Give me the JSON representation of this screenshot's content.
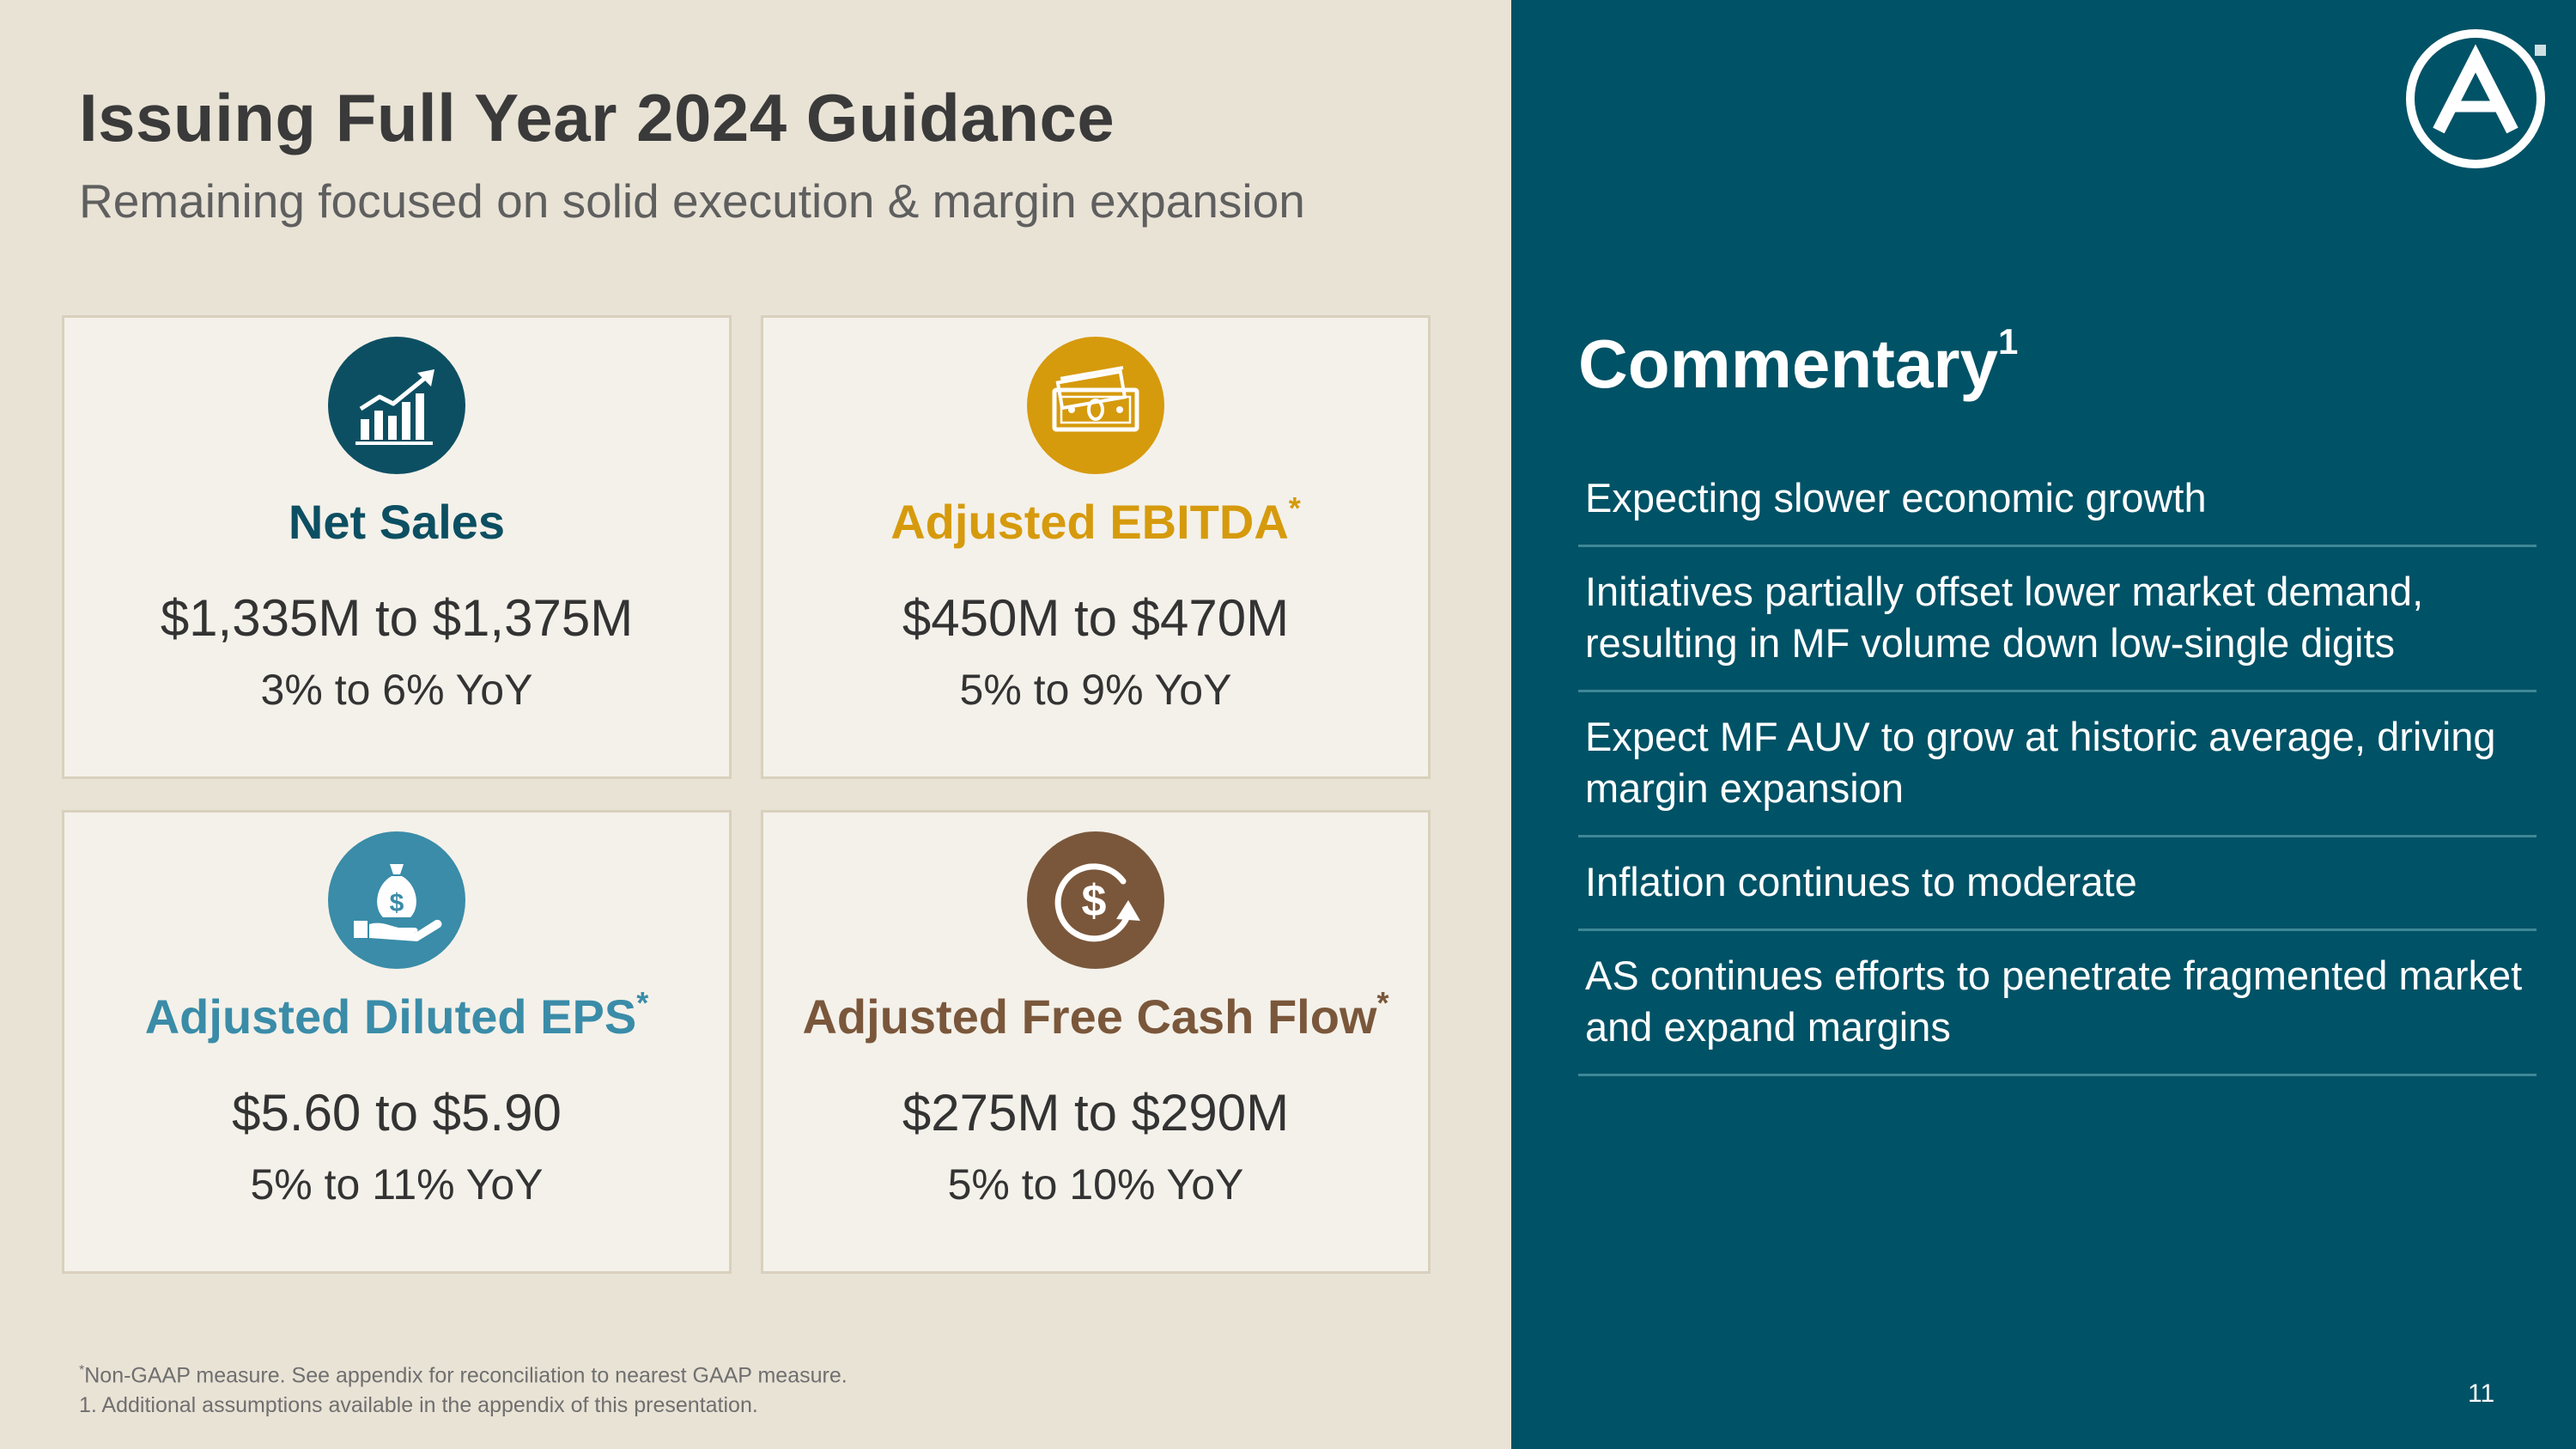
{
  "slide": {
    "title": "Issuing Full Year 2024 Guidance",
    "subtitle": "Remaining focused on solid execution & margin expansion",
    "page_number": "11"
  },
  "cards": [
    {
      "label": "Net Sales",
      "asterisk": "",
      "range": "$1,335M to $1,375M",
      "yoy": "3% to 6% YoY",
      "icon": "growth-chart-icon",
      "color": "#0d4f62"
    },
    {
      "label": "Adjusted EBITDA",
      "asterisk": "*",
      "range": "$450M to $470M",
      "yoy": "5% to 9% YoY",
      "icon": "money-bills-icon",
      "color": "#d69a0d"
    },
    {
      "label": "Adjusted Diluted EPS",
      "asterisk": "*",
      "range": "$5.60 to $5.90",
      "yoy": "5% to 11% YoY",
      "icon": "money-bag-hand-icon",
      "color": "#3a8ca8"
    },
    {
      "label": "Adjusted Free Cash Flow",
      "asterisk": "*",
      "range": "$275M to $290M",
      "yoy": "5% to 10% YoY",
      "icon": "cash-cycle-icon",
      "color": "#7a573b"
    }
  ],
  "commentary": {
    "title": "Commentary",
    "title_note": "1",
    "items": [
      "Expecting slower economic growth",
      "Initiatives partially offset lower market demand, resulting in MF volume down low-single digits",
      "Expect MF AUV to grow at historic average, driving margin expansion",
      "Inflation continues to moderate",
      "AS continues efforts to penetrate fragmented market and expand margins"
    ]
  },
  "footnotes": {
    "asterisk_mark": "*",
    "asterisk_note": "Non-GAAP measure. See appendix for reconciliation to nearest GAAP measure.",
    "note_1": "1. Additional assumptions available in the appendix of this presentation."
  },
  "colors": {
    "panel": "#005266",
    "background": "#e9e3d6",
    "card_background": "#f4f1ea"
  }
}
